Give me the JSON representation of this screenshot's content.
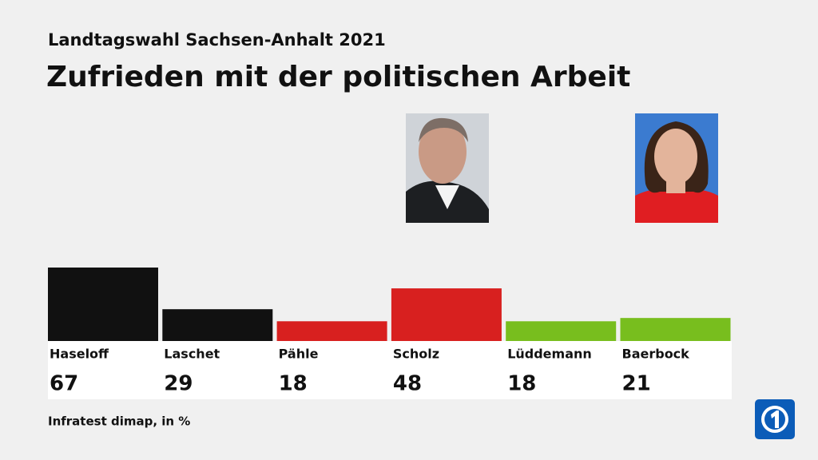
{
  "chart_data": {
    "type": "bar",
    "subtitle": "Landtagswahl Sachsen-Anhalt 2021",
    "title": "Zufrieden mit der politischen Arbeit",
    "categories": [
      "Haseloff",
      "Laschet",
      "Pähle",
      "Scholz",
      "Lüddemann",
      "Baerbock"
    ],
    "values": [
      67,
      29,
      18,
      48,
      18,
      21
    ],
    "colors": [
      "#111111",
      "#111111",
      "#d8201f",
      "#d8201f",
      "#78be1e",
      "#78be1e"
    ],
    "source": "Infratest dimap, in %"
  }
}
